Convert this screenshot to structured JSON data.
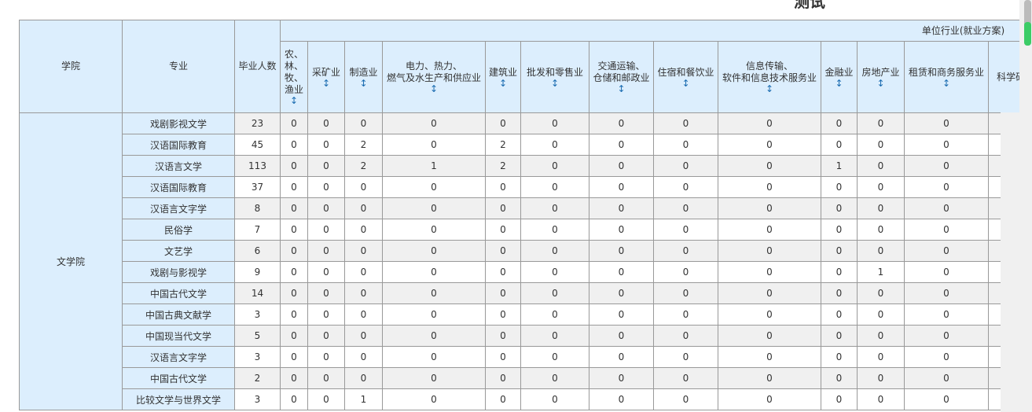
{
  "page_title": "测试",
  "colors": {
    "header_bg": "#dceefd",
    "sort_icon": "#1a6bb0",
    "scroll_thumb": "#3ccc66"
  },
  "headers": {
    "college": "学院",
    "major": "专业",
    "graduates": "毕业人数",
    "group": "单位行业(就业方案)",
    "industries": [
      {
        "l1": "农、",
        "l2": "林、",
        "l3": "牧、",
        "l4": "渔业",
        "sortable": true
      },
      {
        "l1": "采矿业",
        "sortable": true
      },
      {
        "l1": "制造业",
        "sortable": true
      },
      {
        "l1": "电力、热力、",
        "l2": "燃气及水生产和供应业",
        "sortable": true
      },
      {
        "l1": "建筑业",
        "sortable": true
      },
      {
        "l1": "批发和零售业",
        "sortable": true
      },
      {
        "l1": "交通运输、",
        "l2": "仓储和邮政业",
        "sortable": true
      },
      {
        "l1": "住宿和餐饮业",
        "sortable": true
      },
      {
        "l1": "信息传输、",
        "l2": "软件和信息技术服务业",
        "sortable": true
      },
      {
        "l1": "金融业",
        "sortable": true
      },
      {
        "l1": "房地产业",
        "sortable": true
      },
      {
        "l1": "租赁和商务服务业",
        "sortable": true
      },
      {
        "l1": "科学研",
        "sortable": false
      }
    ],
    "sort_icon": "sort-updown-icon"
  },
  "college": "文学院",
  "rows": [
    {
      "major": "戏剧影视文学",
      "count": "23",
      "v": [
        "0",
        "0",
        "0",
        "0",
        "0",
        "0",
        "0",
        "0",
        "0",
        "0",
        "0",
        "0",
        ""
      ]
    },
    {
      "major": "汉语国际教育",
      "count": "45",
      "v": [
        "0",
        "0",
        "2",
        "0",
        "2",
        "0",
        "0",
        "0",
        "0",
        "0",
        "0",
        "0",
        ""
      ]
    },
    {
      "major": "汉语言文学",
      "count": "113",
      "v": [
        "0",
        "0",
        "2",
        "1",
        "2",
        "0",
        "0",
        "0",
        "0",
        "1",
        "0",
        "0",
        ""
      ]
    },
    {
      "major": "汉语国际教育",
      "count": "37",
      "v": [
        "0",
        "0",
        "0",
        "0",
        "0",
        "0",
        "0",
        "0",
        "0",
        "0",
        "0",
        "0",
        ""
      ]
    },
    {
      "major": "汉语言文字学",
      "count": "8",
      "v": [
        "0",
        "0",
        "0",
        "0",
        "0",
        "0",
        "0",
        "0",
        "0",
        "0",
        "0",
        "0",
        ""
      ]
    },
    {
      "major": "民俗学",
      "count": "7",
      "v": [
        "0",
        "0",
        "0",
        "0",
        "0",
        "0",
        "0",
        "0",
        "0",
        "0",
        "0",
        "0",
        ""
      ]
    },
    {
      "major": "文艺学",
      "count": "6",
      "v": [
        "0",
        "0",
        "0",
        "0",
        "0",
        "0",
        "0",
        "0",
        "0",
        "0",
        "0",
        "0",
        ""
      ]
    },
    {
      "major": "戏剧与影视学",
      "count": "9",
      "v": [
        "0",
        "0",
        "0",
        "0",
        "0",
        "0",
        "0",
        "0",
        "0",
        "0",
        "1",
        "0",
        ""
      ]
    },
    {
      "major": "中国古代文学",
      "count": "14",
      "v": [
        "0",
        "0",
        "0",
        "0",
        "0",
        "0",
        "0",
        "0",
        "0",
        "0",
        "0",
        "0",
        ""
      ]
    },
    {
      "major": "中国古典文献学",
      "count": "3",
      "v": [
        "0",
        "0",
        "0",
        "0",
        "0",
        "0",
        "0",
        "0",
        "0",
        "0",
        "0",
        "0",
        ""
      ]
    },
    {
      "major": "中国现当代文学",
      "count": "5",
      "v": [
        "0",
        "0",
        "0",
        "0",
        "0",
        "0",
        "0",
        "0",
        "0",
        "0",
        "0",
        "0",
        ""
      ]
    },
    {
      "major": "汉语言文字学",
      "count": "3",
      "v": [
        "0",
        "0",
        "0",
        "0",
        "0",
        "0",
        "0",
        "0",
        "0",
        "0",
        "0",
        "0",
        ""
      ]
    },
    {
      "major": "中国古代文学",
      "count": "2",
      "v": [
        "0",
        "0",
        "0",
        "0",
        "0",
        "0",
        "0",
        "0",
        "0",
        "0",
        "0",
        "0",
        ""
      ]
    },
    {
      "major": "比较文学与世界文学",
      "count": "3",
      "v": [
        "0",
        "0",
        "1",
        "0",
        "0",
        "0",
        "0",
        "0",
        "0",
        "0",
        "0",
        "0",
        ""
      ]
    }
  ]
}
